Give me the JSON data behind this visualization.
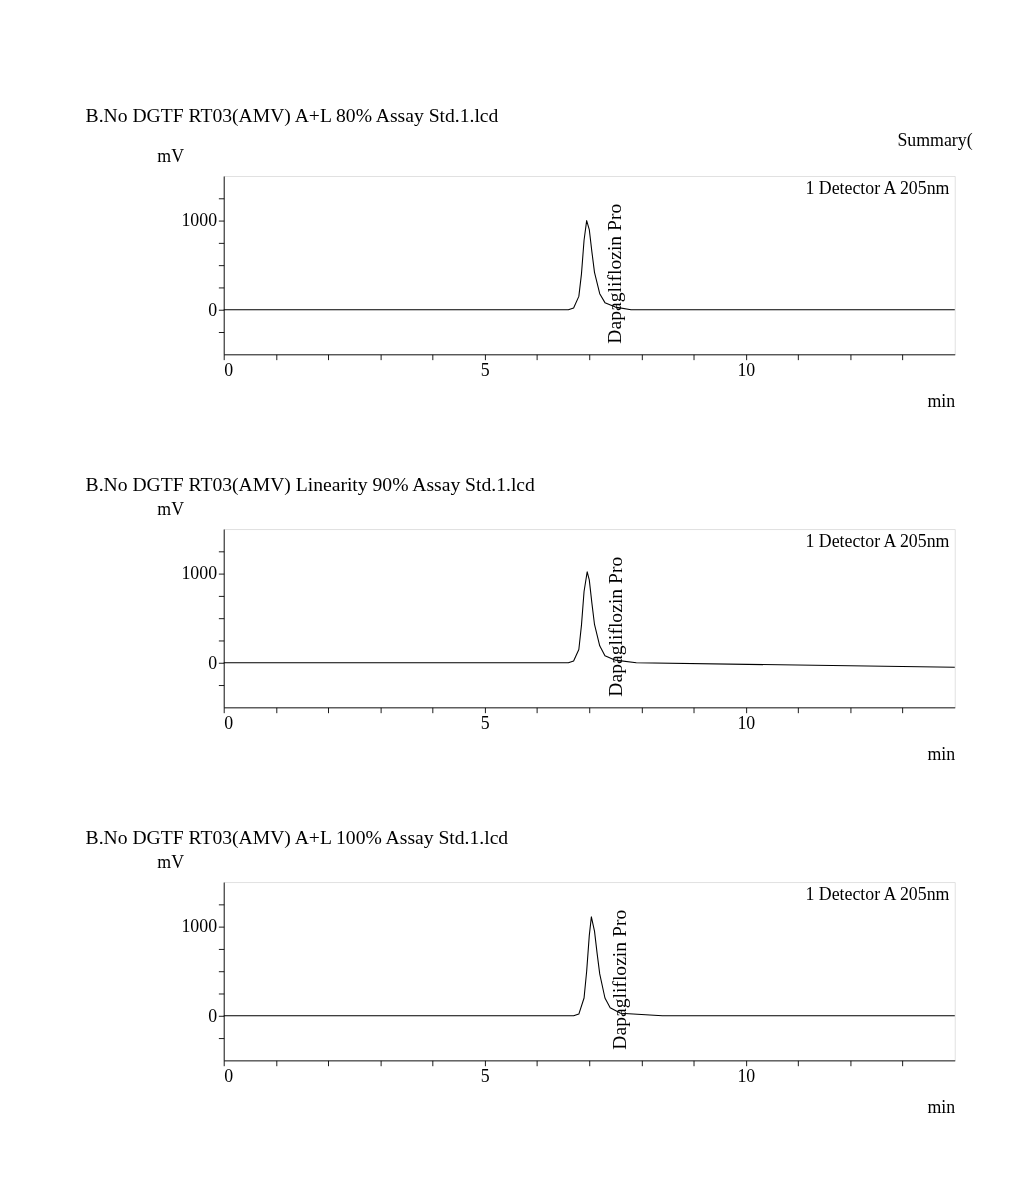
{
  "chart_data": [
    {
      "type": "line",
      "title": "B.No DGTF RT03(AMV) A+L 80% Assay Std.1.lcd",
      "xlabel": "min",
      "ylabel": "mV",
      "legend": "top right",
      "grid": false,
      "marker": "none",
      "line_style": "solid",
      "xlim": [
        0,
        14
      ],
      "ylim": [
        -500,
        1500
      ],
      "xticks": [
        0,
        {
          "value": 1,
          "label": null
        },
        {
          "value": 2,
          "label": null
        },
        {
          "value": 3,
          "label": null
        },
        {
          "value": 4,
          "label": null
        },
        5,
        {
          "value": 6,
          "label": null
        },
        {
          "value": 7,
          "label": null
        },
        {
          "value": 8,
          "label": null
        },
        {
          "value": 9,
          "label": null
        },
        10,
        {
          "value": 11,
          "label": null
        },
        {
          "value": 12,
          "label": null
        },
        {
          "value": 13,
          "label": null
        }
      ],
      "yticks": [
        {
          "value": -250,
          "label": null
        },
        0,
        {
          "value": 250,
          "label": null
        },
        {
          "value": 500,
          "label": null
        },
        {
          "value": 750,
          "label": null
        },
        1000,
        {
          "value": 1250,
          "label": null
        }
      ],
      "annotations": [
        "Summary(",
        "Dapagliflozin Pro"
      ],
      "series": [
        {
          "name": "1 Detector A 205nm",
          "color": "#000000",
          "x": [
            0,
            6.6,
            6.7,
            6.8,
            6.85,
            6.9,
            6.95,
            7.0,
            7.05,
            7.1,
            7.2,
            7.3,
            7.5,
            7.8,
            14
          ],
          "values": [
            0,
            0,
            20,
            150,
            400,
            780,
            1000,
            900,
            650,
            420,
            180,
            80,
            30,
            0,
            0
          ]
        }
      ]
    },
    {
      "type": "line",
      "title": "B.No DGTF RT03(AMV) Linearity 90% Assay Std.1.lcd",
      "xlabel": "min",
      "ylabel": "mV",
      "legend": "top right",
      "grid": false,
      "marker": "none",
      "line_style": "solid",
      "xlim": [
        0,
        14
      ],
      "ylim": [
        -500,
        1500
      ],
      "xticks": [
        0,
        {
          "value": 1,
          "label": null
        },
        {
          "value": 2,
          "label": null
        },
        {
          "value": 3,
          "label": null
        },
        {
          "value": 4,
          "label": null
        },
        5,
        {
          "value": 6,
          "label": null
        },
        {
          "value": 7,
          "label": null
        },
        {
          "value": 8,
          "label": null
        },
        {
          "value": 9,
          "label": null
        },
        10,
        {
          "value": 11,
          "label": null
        },
        {
          "value": 12,
          "label": null
        },
        {
          "value": 13,
          "label": null
        }
      ],
      "yticks": [
        {
          "value": -250,
          "label": null
        },
        0,
        {
          "value": 250,
          "label": null
        },
        {
          "value": 500,
          "label": null
        },
        {
          "value": 750,
          "label": null
        },
        1000,
        {
          "value": 1250,
          "label": null
        }
      ],
      "annotations": [
        "Dapagliflozin Pro"
      ],
      "series": [
        {
          "name": "1 Detector A 205nm",
          "color": "#000000",
          "x": [
            0,
            6.6,
            6.7,
            6.8,
            6.85,
            6.9,
            6.96,
            7.0,
            7.05,
            7.1,
            7.2,
            7.3,
            7.5,
            7.9,
            14
          ],
          "values": [
            0,
            0,
            20,
            150,
            420,
            800,
            1020,
            930,
            670,
            430,
            190,
            80,
            30,
            0,
            -50
          ]
        }
      ]
    },
    {
      "type": "line",
      "title": "B.No DGTF RT03(AMV) A+L 100% Assay Std.1.lcd",
      "xlabel": "min",
      "ylabel": "mV",
      "legend": "top right",
      "grid": false,
      "marker": "none",
      "line_style": "solid",
      "xlim": [
        0,
        14
      ],
      "ylim": [
        -500,
        1500
      ],
      "xticks": [
        0,
        {
          "value": 1,
          "label": null
        },
        {
          "value": 2,
          "label": null
        },
        {
          "value": 3,
          "label": null
        },
        {
          "value": 4,
          "label": null
        },
        5,
        {
          "value": 6,
          "label": null
        },
        {
          "value": 7,
          "label": null
        },
        {
          "value": 8,
          "label": null
        },
        {
          "value": 9,
          "label": null
        },
        10,
        {
          "value": 11,
          "label": null
        },
        {
          "value": 12,
          "label": null
        },
        {
          "value": 13,
          "label": null
        }
      ],
      "yticks": [
        {
          "value": -250,
          "label": null
        },
        0,
        {
          "value": 250,
          "label": null
        },
        {
          "value": 500,
          "label": null
        },
        {
          "value": 750,
          "label": null
        },
        1000,
        {
          "value": 1250,
          "label": null
        }
      ],
      "annotations": [
        "Dapagliflozin Pro"
      ],
      "series": [
        {
          "name": "1 Detector A 205nm",
          "color": "#000000",
          "x": [
            0,
            6.7,
            6.8,
            6.9,
            6.95,
            7.0,
            7.04,
            7.1,
            7.15,
            7.2,
            7.3,
            7.4,
            7.6,
            8.4,
            14
          ],
          "values": [
            0,
            0,
            20,
            200,
            500,
            900,
            1110,
            950,
            700,
            470,
            200,
            90,
            30,
            0,
            0
          ]
        }
      ]
    }
  ]
}
